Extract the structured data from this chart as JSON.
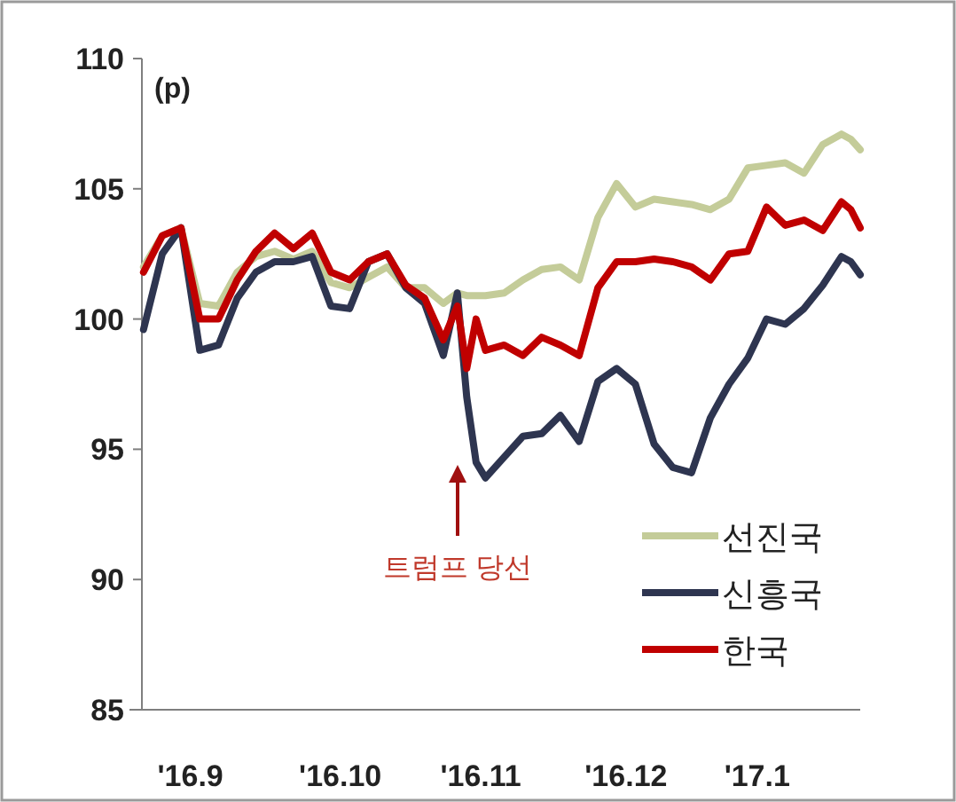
{
  "chart_data": {
    "type": "line",
    "ylabel": "(p)",
    "x": [
      "2016-09-02",
      "2016-09-06",
      "2016-09-10",
      "2016-09-14",
      "2016-09-18",
      "2016-09-22",
      "2016-09-26",
      "2016-09-30",
      "2016-10-04",
      "2016-10-08",
      "2016-10-12",
      "2016-10-16",
      "2016-10-20",
      "2016-10-24",
      "2016-10-28",
      "2016-11-01",
      "2016-11-05",
      "2016-11-08",
      "2016-11-10",
      "2016-11-12",
      "2016-11-14",
      "2016-11-18",
      "2016-11-22",
      "2016-11-26",
      "2016-11-30",
      "2016-12-04",
      "2016-12-08",
      "2016-12-12",
      "2016-12-16",
      "2016-12-20",
      "2016-12-24",
      "2016-12-28",
      "2017-01-01",
      "2017-01-05",
      "2017-01-09",
      "2017-01-13",
      "2017-01-17",
      "2017-01-21",
      "2017-01-25",
      "2017-01-29",
      "2017-01-31",
      "2017-02-02"
    ],
    "series": [
      {
        "name": "선진국",
        "color": "#c4cc99",
        "values": [
          102.0,
          103.2,
          103.5,
          100.6,
          100.5,
          101.8,
          102.4,
          102.6,
          102.3,
          102.6,
          101.4,
          101.2,
          101.6,
          102.0,
          101.2,
          101.2,
          100.6,
          101.0,
          100.9,
          100.9,
          100.9,
          101.0,
          101.5,
          101.9,
          102.0,
          101.5,
          103.9,
          105.2,
          104.3,
          104.6,
          104.5,
          104.4,
          104.2,
          104.6,
          105.8,
          105.9,
          106.0,
          105.6,
          106.7,
          107.1,
          106.9,
          106.5
        ]
      },
      {
        "name": "신흥국",
        "color": "#2e3550",
        "values": [
          99.6,
          102.5,
          103.5,
          98.8,
          99.0,
          100.8,
          101.8,
          102.2,
          102.2,
          102.4,
          100.5,
          100.4,
          102.2,
          102.5,
          101.2,
          100.6,
          98.6,
          101.0,
          97.0,
          94.5,
          93.9,
          94.7,
          95.5,
          95.6,
          96.3,
          95.3,
          97.6,
          98.1,
          97.5,
          95.2,
          94.3,
          94.1,
          96.2,
          97.5,
          98.5,
          100.0,
          99.8,
          100.4,
          101.3,
          102.4,
          102.2,
          101.7
        ]
      },
      {
        "name": "한국",
        "color": "#c00000",
        "values": [
          101.8,
          103.2,
          103.5,
          100.0,
          100.0,
          101.5,
          102.6,
          103.3,
          102.7,
          103.3,
          101.8,
          101.5,
          102.2,
          102.5,
          101.3,
          100.8,
          99.2,
          100.5,
          98.1,
          100.0,
          98.8,
          99.0,
          98.6,
          99.3,
          99.0,
          98.6,
          101.2,
          102.2,
          102.2,
          102.3,
          102.2,
          102.0,
          101.5,
          102.5,
          102.6,
          104.3,
          103.6,
          103.8,
          103.4,
          104.5,
          104.2,
          103.5
        ]
      }
    ],
    "xlim": [
      "2016-08-30",
      "2017-02-02"
    ],
    "xticks": [
      {
        "value": "2016-09-12",
        "label": "'16.9"
      },
      {
        "value": "2016-10-14",
        "label": "'16.10"
      },
      {
        "value": "2016-11-13",
        "label": "'16.11"
      },
      {
        "value": "2016-12-14",
        "label": "'16.12"
      },
      {
        "value": "2017-01-11",
        "label": "'17.1"
      }
    ],
    "ylim": [
      85,
      110
    ],
    "yticks": [
      85,
      90,
      95,
      100,
      105,
      110
    ],
    "legend": "bottom right",
    "annotations": [
      "트럼프 당선"
    ]
  }
}
